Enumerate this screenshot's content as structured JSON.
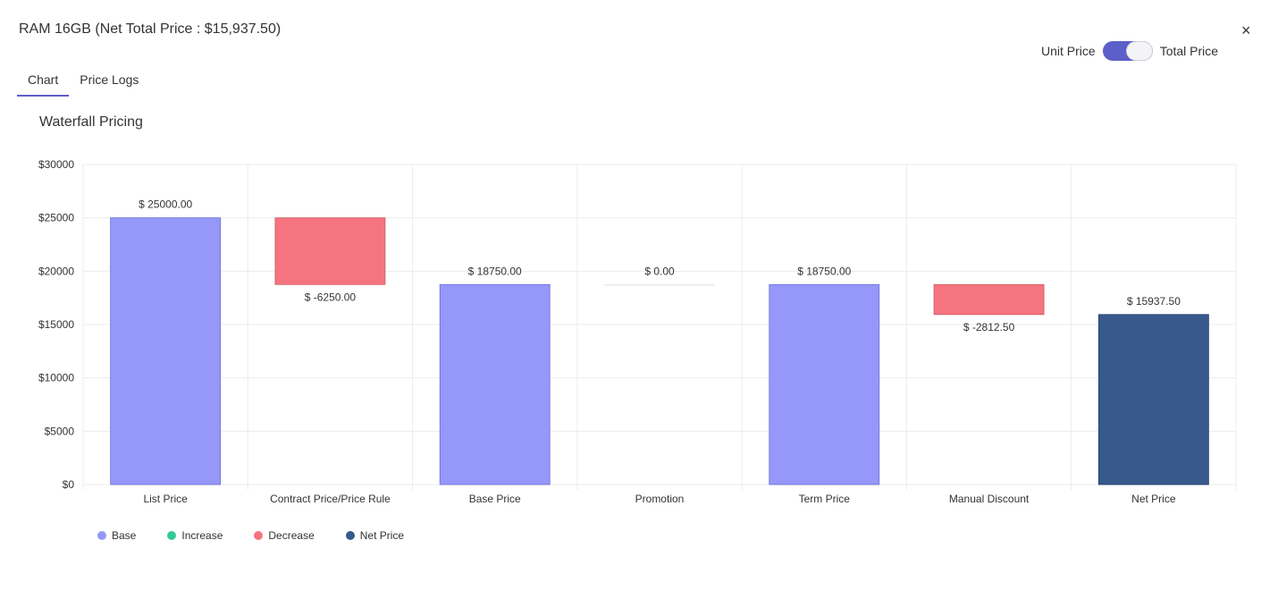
{
  "header": {
    "title": "RAM 16GB (Net Total Price : $15,937.50)",
    "close_icon": "×"
  },
  "price_toggle": {
    "left_label": "Unit Price",
    "right_label": "Total Price",
    "selected": "Total Price"
  },
  "tabs": [
    {
      "label": "Chart",
      "active": true
    },
    {
      "label": "Price Logs",
      "active": false
    }
  ],
  "colors": {
    "accent": "#5b5fc7",
    "base": "#9598f9",
    "increase": "#34c995",
    "decrease": "#f6747f",
    "net": "#37598c"
  },
  "chart_data": {
    "type": "bar",
    "title": "Waterfall Pricing",
    "ylim": [
      0,
      30000
    ],
    "yticks": [
      0,
      5000,
      10000,
      15000,
      20000,
      25000,
      30000
    ],
    "ytick_labels": [
      "$0",
      "$5000",
      "$10000",
      "$15000",
      "$20000",
      "$25000",
      "$30000"
    ],
    "bars": [
      {
        "category": "List Price",
        "start": 0,
        "end": 25000,
        "kind": "base",
        "label": "$ 25000.00"
      },
      {
        "category": "Contract Price/Price Rule",
        "start": 25000,
        "end": 18750,
        "kind": "decrease",
        "label": "$ -6250.00"
      },
      {
        "category": "Base Price",
        "start": 0,
        "end": 18750,
        "kind": "base",
        "label": "$ 18750.00"
      },
      {
        "category": "Promotion",
        "start": 18750,
        "end": 18750,
        "kind": "increase",
        "label": "$ 0.00"
      },
      {
        "category": "Term Price",
        "start": 0,
        "end": 18750,
        "kind": "base",
        "label": "$ 18750.00"
      },
      {
        "category": "Manual Discount",
        "start": 18750,
        "end": 15937.5,
        "kind": "decrease",
        "label": "$ -2812.50"
      },
      {
        "category": "Net Price",
        "start": 0,
        "end": 15937.5,
        "kind": "net",
        "label": "$ 15937.50"
      }
    ],
    "legend": [
      {
        "label": "Base",
        "kind": "base"
      },
      {
        "label": "Increase",
        "kind": "increase"
      },
      {
        "label": "Decrease",
        "kind": "decrease"
      },
      {
        "label": "Net Price",
        "kind": "net"
      }
    ]
  }
}
